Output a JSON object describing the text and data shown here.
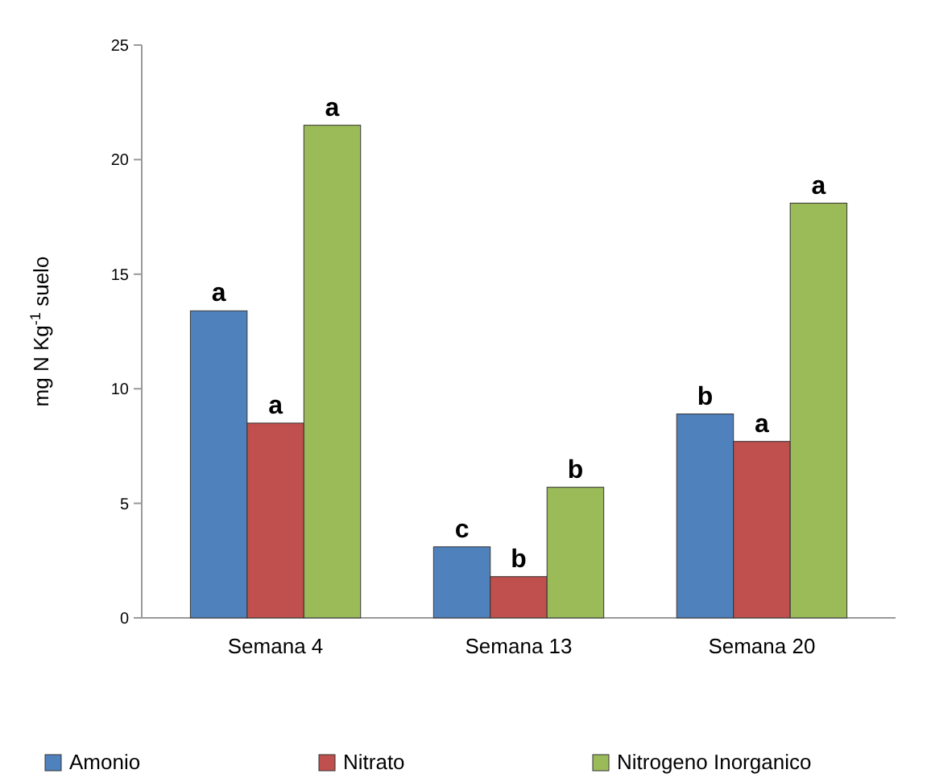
{
  "chart_data": {
    "type": "bar",
    "ylabel": "mg N Kg$^{-1}$ suelo",
    "categories": [
      "Semana 4",
      "Semana 13",
      "Semana 20"
    ],
    "series": [
      {
        "name": "Amonio",
        "color": "#4f81bd",
        "values": [
          13.4,
          3.1,
          8.9
        ]
      },
      {
        "name": "Nitrato",
        "color": "#c0504d",
        "values": [
          8.5,
          1.8,
          7.7
        ]
      },
      {
        "name": "Nitrogeno Inorganico",
        "color": "#9bbb59",
        "values": [
          21.5,
          5.7,
          18.1
        ]
      }
    ],
    "ylim": [
      0,
      25
    ],
    "yticks": [
      0,
      5,
      10,
      15,
      20,
      25
    ],
    "grid": false,
    "legend": "bottom",
    "annotations": [
      "a",
      "a",
      "a",
      "c",
      "b",
      "b",
      "b",
      "a",
      "a"
    ]
  }
}
